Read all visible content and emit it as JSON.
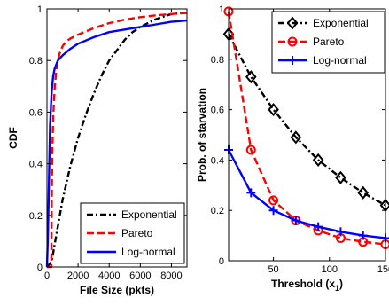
{
  "chart_data": [
    {
      "type": "line",
      "title": "",
      "xlabel": "File Size (pkts)",
      "ylabel": "CDF",
      "xlim": [
        0,
        9000
      ],
      "ylim": [
        0,
        1
      ],
      "xticks": [
        0,
        2000,
        4000,
        6000,
        8000
      ],
      "yticks": [
        0,
        0.2,
        0.4,
        0.6,
        0.8,
        1
      ],
      "xtick_labels": [
        "0",
        "2000",
        "4000",
        "6000",
        "8000"
      ],
      "ytick_labels": [
        "0",
        "0.2",
        "0.4",
        "0.6",
        "0.8",
        "1"
      ],
      "grid": false,
      "legend_position": "bottom-right",
      "series": [
        {
          "name": "Exponential",
          "color": "#000000",
          "style": "dash-dot",
          "marker": "none",
          "x": [
            0,
            300,
            500,
            800,
            1000,
            1500,
            2000,
            2500,
            3000,
            3500,
            4000,
            4500,
            5000,
            5500,
            6000,
            7000,
            8000,
            9000
          ],
          "y": [
            0,
            0.02,
            0.09,
            0.19,
            0.26,
            0.39,
            0.5,
            0.59,
            0.67,
            0.74,
            0.8,
            0.84,
            0.88,
            0.91,
            0.93,
            0.96,
            0.98,
            0.985
          ]
        },
        {
          "name": "Pareto",
          "color": "#ff0000",
          "style": "dashed",
          "marker": "none",
          "x": [
            0,
            280,
            300,
            350,
            400,
            500,
            600,
            700,
            800,
            1000,
            1200,
            1500,
            2000,
            3000,
            4000,
            5000,
            6000,
            7000,
            8000,
            9000
          ],
          "y": [
            0,
            0,
            0.25,
            0.45,
            0.58,
            0.7,
            0.76,
            0.8,
            0.825,
            0.855,
            0.872,
            0.885,
            0.9,
            0.925,
            0.945,
            0.958,
            0.968,
            0.975,
            0.98,
            0.985
          ]
        },
        {
          "name": "Log-normal",
          "color": "#0000ff",
          "style": "solid",
          "marker": "none",
          "x": [
            0,
            50,
            100,
            150,
            200,
            300,
            400,
            500,
            700,
            1000,
            1500,
            2000,
            3000,
            4000,
            5000,
            6000,
            7000,
            8000,
            9000
          ],
          "y": [
            0,
            0.1,
            0.25,
            0.4,
            0.55,
            0.68,
            0.74,
            0.77,
            0.8,
            0.82,
            0.845,
            0.865,
            0.89,
            0.91,
            0.92,
            0.93,
            0.94,
            0.95,
            0.955
          ]
        }
      ]
    },
    {
      "type": "line",
      "title": "",
      "xlabel": "Threshold (x",
      "xlabel_sub": "1",
      "xlabel_end": ")",
      "ylabel": "Prob. of starvation",
      "xlim": [
        10,
        150
      ],
      "ylim": [
        0,
        1
      ],
      "xticks": [
        50,
        100,
        150
      ],
      "yticks": [
        0,
        0.2,
        0.4,
        0.6,
        0.8,
        1
      ],
      "xtick_labels": [
        "50",
        "100",
        "150"
      ],
      "ytick_labels": [
        "0",
        "0.2",
        "0.4",
        "0.6",
        "0.8",
        "1"
      ],
      "grid": false,
      "legend_position": "top-right",
      "series": [
        {
          "name": "Exponential",
          "color": "#000000",
          "style": "dash-dot",
          "marker": "diamond",
          "x": [
            10,
            30,
            50,
            70,
            90,
            110,
            130,
            150
          ],
          "y": [
            0.9,
            0.73,
            0.6,
            0.49,
            0.4,
            0.33,
            0.27,
            0.22
          ]
        },
        {
          "name": "Pareto",
          "color": "#ff0000",
          "style": "dashed",
          "marker": "circle",
          "x": [
            10,
            30,
            50,
            70,
            90,
            110,
            130,
            150
          ],
          "y": [
            0.99,
            0.44,
            0.24,
            0.16,
            0.12,
            0.09,
            0.075,
            0.065
          ]
        },
        {
          "name": "Log-normal",
          "color": "#0000ff",
          "style": "solid",
          "marker": "plus",
          "x": [
            10,
            30,
            50,
            70,
            90,
            110,
            130,
            150
          ],
          "y": [
            0.44,
            0.27,
            0.2,
            0.16,
            0.135,
            0.115,
            0.1,
            0.09
          ]
        }
      ]
    }
  ]
}
